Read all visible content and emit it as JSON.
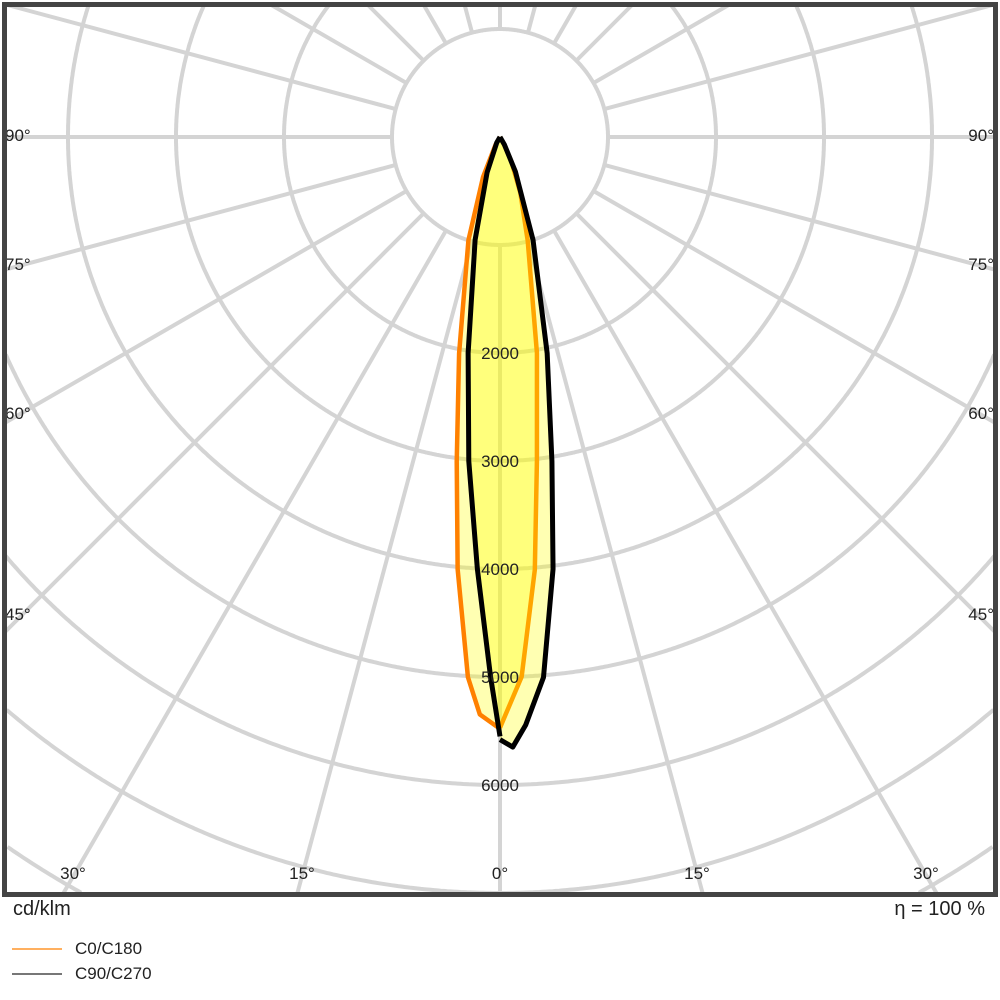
{
  "chart_data": {
    "type": "polar",
    "unit_label": "cd/klm",
    "efficiency_label": "η = 100 %",
    "radial_ticks": [
      1000,
      2000,
      3000,
      4000,
      5000,
      6000,
      7000,
      8000
    ],
    "radial_tick_labels": [
      "2000",
      "3000",
      "4000",
      "5000",
      "6000"
    ],
    "angle_step_deg": 15,
    "angle_labels_left": [
      "90°",
      "75°",
      "60°",
      "45°"
    ],
    "angle_labels_right": [
      "90°",
      "75°",
      "60°",
      "45°"
    ],
    "angle_labels_bottom": [
      "30°",
      "15°",
      "0°",
      "15°",
      "30°"
    ],
    "grid": true,
    "legend_position": "bottom-left",
    "series": [
      {
        "name": "C0/C180",
        "color": "#ffb060",
        "stroke_left": "#ff8000",
        "stroke_right": "#ffa500",
        "left_half": [
          [
            0,
            5480
          ],
          [
            2,
            5350
          ],
          [
            3.4,
            5010
          ],
          [
            5.6,
            4020
          ],
          [
            7.6,
            3030
          ],
          [
            10.7,
            2040
          ],
          [
            17,
            1000
          ],
          [
            23,
            400
          ],
          [
            30,
            80
          ],
          [
            40,
            0
          ]
        ],
        "right_half": [
          [
            0,
            5470
          ],
          [
            2.3,
            5000
          ],
          [
            4.6,
            4020
          ],
          [
            6.5,
            3020
          ],
          [
            9.7,
            2030
          ],
          [
            15,
            990
          ],
          [
            20,
            550
          ],
          [
            25,
            250
          ],
          [
            30,
            60
          ],
          [
            40,
            0
          ]
        ]
      },
      {
        "name": "C90/C270",
        "color": "#777777",
        "stroke_left": "#000000",
        "stroke_right": "#000000",
        "left_half": [
          [
            0,
            5550
          ],
          [
            1,
            5000
          ],
          [
            3,
            4005
          ],
          [
            5.5,
            3015
          ],
          [
            8.4,
            2020
          ],
          [
            13.6,
            980
          ],
          [
            20,
            350
          ],
          [
            30,
            60
          ],
          [
            40,
            0
          ]
        ],
        "right_half": [
          [
            0,
            5580
          ],
          [
            1.2,
            5650
          ],
          [
            2.5,
            5450
          ],
          [
            4.6,
            5020
          ],
          [
            7,
            4030
          ],
          [
            9.1,
            3040
          ],
          [
            12.3,
            2050
          ],
          [
            17.8,
            1000
          ],
          [
            24,
            350
          ],
          [
            30,
            80
          ],
          [
            40,
            0
          ]
        ]
      }
    ],
    "fill_color": "#ffff00"
  }
}
